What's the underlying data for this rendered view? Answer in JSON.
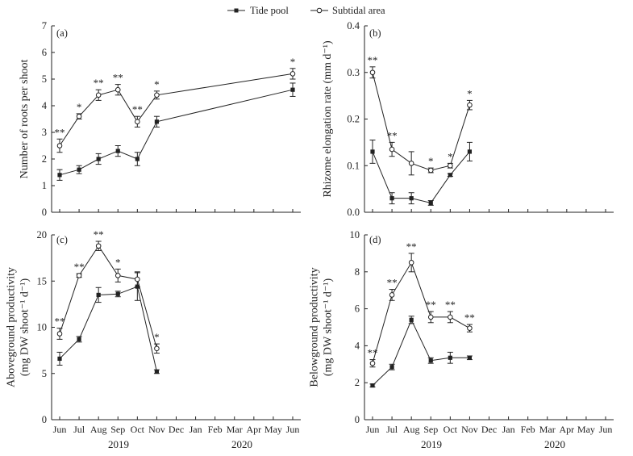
{
  "legend": {
    "tide": "Tide pool",
    "subtidal": "Subtidal area"
  },
  "months": [
    "Jun",
    "Jul",
    "Aug",
    "Sep",
    "Oct",
    "Nov",
    "Dec",
    "Jan",
    "Feb",
    "Mar",
    "Apr",
    "May",
    "Jun"
  ],
  "years": [
    "2019",
    "2020"
  ],
  "chart_data": [
    {
      "panel": "(a)",
      "type": "line",
      "ylabel_lines": [
        "Number of roots per shoot"
      ],
      "ylim": [
        0,
        7
      ],
      "yticks": [
        "0",
        "1",
        "2",
        "3",
        "4",
        "5",
        "6",
        "7"
      ],
      "x": [
        0,
        1,
        2,
        3,
        4,
        5,
        12
      ],
      "series": [
        {
          "name": "Tide pool",
          "values": [
            1.4,
            1.6,
            2.0,
            2.3,
            2.0,
            3.4,
            4.6
          ],
          "err": [
            0.2,
            0.15,
            0.2,
            0.2,
            0.25,
            0.2,
            0.25
          ]
        },
        {
          "name": "Subtidal area",
          "values": [
            2.5,
            3.6,
            4.4,
            4.6,
            3.4,
            4.4,
            5.2
          ],
          "err": [
            0.25,
            0.1,
            0.2,
            0.2,
            0.2,
            0.15,
            0.2
          ]
        }
      ],
      "sig": [
        "**",
        "*",
        "**",
        "**",
        "**",
        "*",
        "*"
      ]
    },
    {
      "panel": "(b)",
      "type": "line",
      "ylabel_lines": [
        "Rhizome elongation rate (mm d⁻¹)"
      ],
      "ylim": [
        0,
        0.4
      ],
      "yticks": [
        "0.0",
        "0.1",
        "0.2",
        "0.3",
        "0.4"
      ],
      "x": [
        0,
        1,
        2,
        3,
        4,
        5
      ],
      "series": [
        {
          "name": "Tide pool",
          "values": [
            0.13,
            0.03,
            0.03,
            0.02,
            0.08,
            0.13
          ],
          "err": [
            0.025,
            0.012,
            0.012,
            0.005,
            0.003,
            0.02
          ]
        },
        {
          "name": "Subtidal area",
          "values": [
            0.3,
            0.135,
            0.105,
            0.09,
            0.1,
            0.23
          ],
          "err": [
            0.012,
            0.015,
            0.025,
            0.005,
            0.005,
            0.01
          ]
        }
      ],
      "sig": [
        "**",
        "**",
        "",
        "*",
        "*",
        "*"
      ]
    },
    {
      "panel": "(c)",
      "type": "line",
      "ylabel_lines": [
        "Aboveground productivity",
        "(mg DW shoot⁻¹ d⁻¹)"
      ],
      "ylim": [
        0,
        20
      ],
      "yticks": [
        "0",
        "5",
        "10",
        "15",
        "20"
      ],
      "x": [
        0,
        1,
        2,
        3,
        4,
        5
      ],
      "series": [
        {
          "name": "Tide pool",
          "values": [
            6.6,
            8.7,
            13.5,
            13.6,
            14.4,
            5.2
          ],
          "err": [
            0.7,
            0.3,
            0.8,
            0.3,
            1.5,
            0.2
          ]
        },
        {
          "name": "Subtidal area",
          "values": [
            9.3,
            15.6,
            18.8,
            15.6,
            15.2,
            7.7
          ],
          "err": [
            0.6,
            0.2,
            0.5,
            0.7,
            0.8,
            0.5
          ]
        }
      ],
      "sig": [
        "**",
        "**",
        "**",
        "*",
        "",
        "*"
      ]
    },
    {
      "panel": "(d)",
      "type": "line",
      "ylabel_lines": [
        "Belowground productivity",
        "(mg DW shoot⁻¹ d⁻¹)"
      ],
      "ylim": [
        0,
        10
      ],
      "yticks": [
        "0",
        "2",
        "4",
        "6",
        "8",
        "10"
      ],
      "x": [
        0,
        1,
        2,
        3,
        4,
        5
      ],
      "series": [
        {
          "name": "Tide pool",
          "values": [
            1.85,
            2.85,
            5.4,
            3.2,
            3.35,
            3.35
          ],
          "err": [
            0.08,
            0.15,
            0.2,
            0.15,
            0.3,
            0.1
          ]
        },
        {
          "name": "Subtidal area",
          "values": [
            3.05,
            6.75,
            8.5,
            5.55,
            5.55,
            4.95
          ],
          "err": [
            0.2,
            0.3,
            0.5,
            0.3,
            0.3,
            0.2
          ]
        }
      ],
      "sig": [
        "**",
        "**",
        "**",
        "**",
        "**",
        "**"
      ]
    }
  ]
}
